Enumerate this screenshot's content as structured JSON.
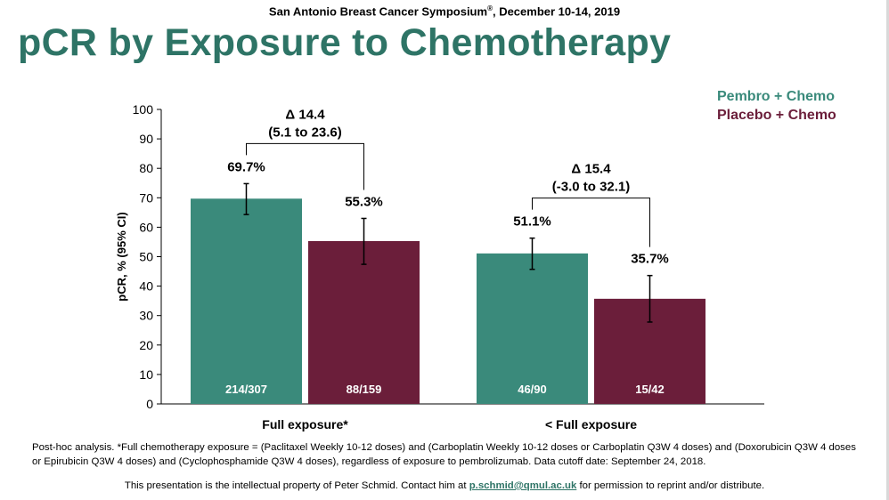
{
  "header": {
    "conference_name": "San Antonio Breast Cancer Symposium",
    "conference_mark": "®",
    "conference_dates": ", December 10-14, 2019",
    "title": "pCR by Exposure to Chemotherapy"
  },
  "colors": {
    "title": "#2e7466",
    "pembro": "#3a8a7b",
    "placebo": "#6b1e3a",
    "bar_label": "#ffffff"
  },
  "chart_data": {
    "type": "bar",
    "title": "",
    "xlabel": "",
    "ylabel": "pCR, % (95% CI)",
    "ylim": [
      0,
      100
    ],
    "yticks": [
      0,
      10,
      20,
      30,
      40,
      50,
      60,
      70,
      80,
      90,
      100
    ],
    "categories": [
      "Full exposure*",
      "< Full exposure"
    ],
    "series": [
      {
        "name": "Pembro + Chemo",
        "color": "#3a8a7b",
        "values": [
          69.7,
          51.1
        ],
        "ci_low": [
          64.3,
          45.7
        ],
        "ci_high": [
          74.8,
          56.3
        ],
        "value_labels": [
          "69.7%",
          "51.1%"
        ],
        "n_labels": [
          "214/307",
          "46/90"
        ]
      },
      {
        "name": "Placebo + Chemo",
        "color": "#6b1e3a",
        "values": [
          55.3,
          35.7
        ],
        "ci_low": [
          47.4,
          27.8
        ],
        "ci_high": [
          63.0,
          43.6
        ],
        "value_labels": [
          "55.3%",
          "35.7%"
        ],
        "n_labels": [
          "88/159",
          "15/42"
        ]
      }
    ],
    "differences": [
      {
        "delta": "Δ 14.4",
        "ci": "(5.1 to 23.6)"
      },
      {
        "delta": "Δ 15.4",
        "ci": "(-3.0 to 32.1)"
      }
    ],
    "legend_position": "top-right",
    "grid": false
  },
  "footnote": "Post-hoc analysis. *Full chemotherapy exposure = (Paclitaxel Weekly 10-12 doses) and (Carboplatin Weekly 10-12 doses or Carboplatin Q3W 4 doses) and (Doxorubicin Q3W 4 doses or Epirubicin Q3W 4 doses) and (Cyclophosphamide Q3W 4 doses), regardless of exposure to pembrolizumab. Data cutoff date: September 24, 2018.",
  "ip_notice": {
    "before": "This presentation is the intellectual property of Peter Schmid. Contact him at ",
    "email": "p.schmid@qmul.ac.uk",
    "after": " for permission to reprint and/or distribute."
  }
}
